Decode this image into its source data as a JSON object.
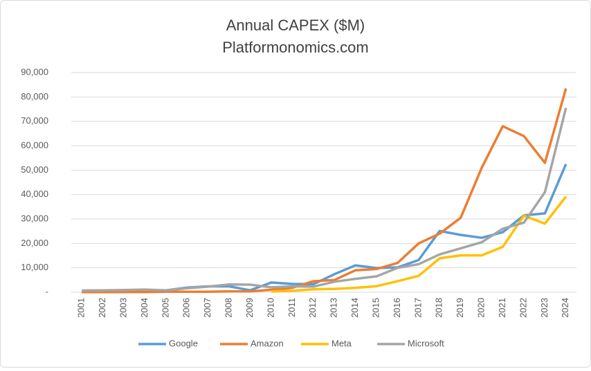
{
  "chart_data": {
    "type": "line",
    "title": "Annual CAPEX ($M)",
    "subtitle": "Platformonomics.com",
    "categories": [
      "2001",
      "2002",
      "2003",
      "2004",
      "2005",
      "2006",
      "2007",
      "2008",
      "2009",
      "2010",
      "2011",
      "2012",
      "2013",
      "2014",
      "2015",
      "2016",
      "2017",
      "2018",
      "2019",
      "2020",
      "2021",
      "2022",
      "2023",
      "2024"
    ],
    "series": [
      {
        "name": "Google",
        "color": "#5b9bd5",
        "values": [
          400,
          400,
          600,
          300,
          800,
          1900,
          2400,
          2400,
          800,
          4000,
          3400,
          3300,
          7400,
          11000,
          9900,
          10200,
          13200,
          25100,
          23500,
          22300,
          24600,
          31500,
          32300,
          52500
        ]
      },
      {
        "name": "Amazon",
        "color": "#ed7d31",
        "values": [
          50,
          40,
          50,
          90,
          200,
          220,
          220,
          330,
          370,
          1000,
          1800,
          4500,
          5000,
          9000,
          9500,
          12000,
          20000,
          24000,
          30500,
          51000,
          68000,
          64000,
          53000,
          83500
        ]
      },
      {
        "name": "Meta",
        "color": "#ffc000",
        "values": [
          null,
          null,
          null,
          null,
          null,
          null,
          null,
          null,
          null,
          300,
          600,
          1200,
          1400,
          1800,
          2500,
          4500,
          6700,
          13900,
          15100,
          15100,
          18600,
          31400,
          28100,
          39200
        ]
      },
      {
        "name": "Microsoft",
        "color": "#a5a5a5",
        "values": [
          700,
          800,
          900,
          1100,
          800,
          1600,
          2300,
          3200,
          3100,
          2000,
          2400,
          2300,
          4300,
          5500,
          6500,
          10000,
          11500,
          15500,
          18000,
          20500,
          26000,
          28500,
          41000,
          75500
        ]
      }
    ],
    "ylim": [
      0,
      90000
    ],
    "yticks": [
      {
        "value": 0,
        "label": "-"
      },
      {
        "value": 10000,
        "label": "10,000"
      },
      {
        "value": 20000,
        "label": "20,000"
      },
      {
        "value": 30000,
        "label": "30,000"
      },
      {
        "value": 40000,
        "label": "40,000"
      },
      {
        "value": 50000,
        "label": "50,000"
      },
      {
        "value": 60000,
        "label": "60,000"
      },
      {
        "value": 70000,
        "label": "70,000"
      },
      {
        "value": 80000,
        "label": "80,000"
      },
      {
        "value": 90000,
        "label": "90,000"
      }
    ],
    "grid": true
  }
}
